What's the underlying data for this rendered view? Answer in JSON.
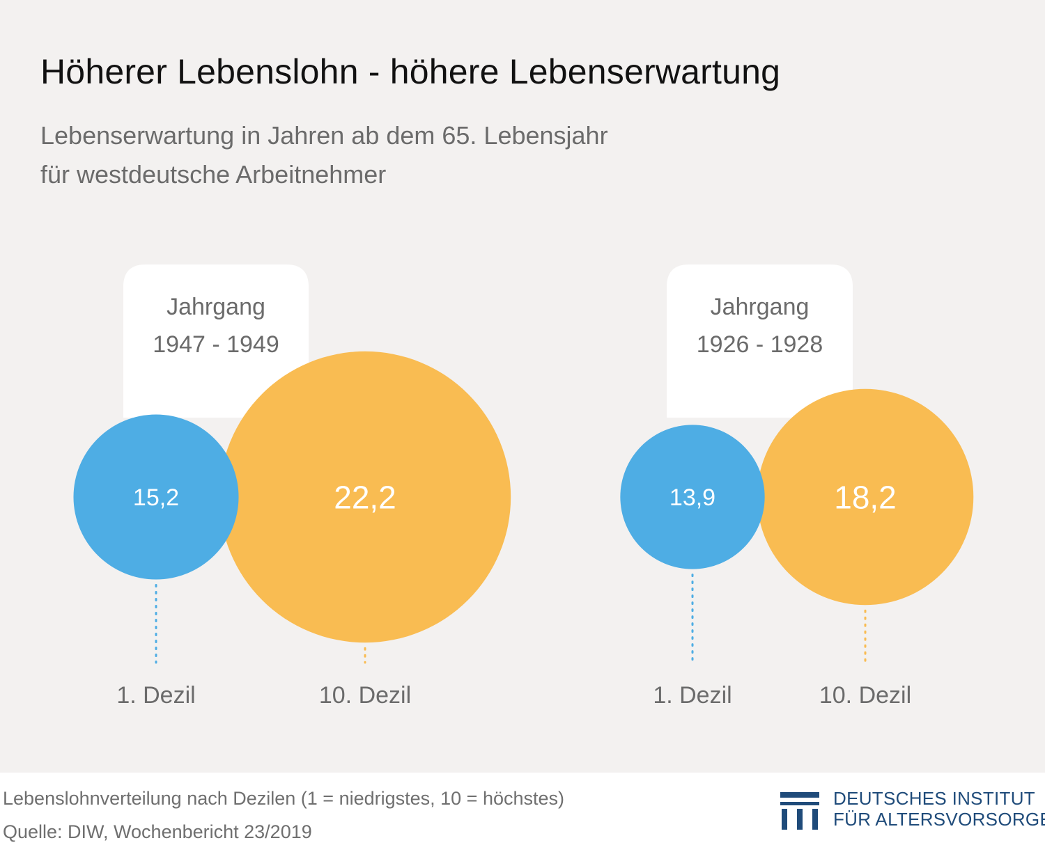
{
  "header": {
    "title": "Höherer Lebenslohn - höhere Lebenserwartung",
    "subtitle_line1": "Lebenserwartung in Jahren ab dem 65. Lebensjahr",
    "subtitle_line2": "für westdeutsche Arbeitnehmer"
  },
  "footer": {
    "note": "Lebenslohnverteilung nach Dezilen (1 = niedrigstes, 10 = höchstes)",
    "source": "Quelle: DIW, Wochenbericht 23/2019"
  },
  "logo": {
    "line1": "DEUTSCHES INSTITUT",
    "line2": "FÜR ALTERSVORSORGE"
  },
  "colors": {
    "blue": "#4eade4",
    "orange": "#f9bc52",
    "background": "#f3f1f0",
    "label_box": "#ffffff",
    "logo": "#1f4b7a"
  },
  "chart_data": {
    "type": "bubble",
    "title": "Höherer Lebenslohn - höhere Lebenserwartung",
    "subtitle": "Lebenserwartung in Jahren ab dem 65. Lebensjahr für westdeutsche Arbeitnehmer",
    "groups": [
      {
        "label_line1": "Jahrgang",
        "label_line2": "1947 - 1949",
        "points": [
          {
            "category": "1. Dezil",
            "display": "15,2",
            "value": 15.2,
            "color": "#4eade4"
          },
          {
            "category": "10. Dezil",
            "display": "22,2",
            "value": 22.2,
            "color": "#f9bc52"
          }
        ]
      },
      {
        "label_line1": "Jahrgang",
        "label_line2": "1926 - 1928",
        "points": [
          {
            "category": "1. Dezil",
            "display": "13,9",
            "value": 13.9,
            "color": "#4eade4"
          },
          {
            "category": "10. Dezil",
            "display": "18,2",
            "value": 18.2,
            "color": "#f9bc52"
          }
        ]
      }
    ]
  }
}
